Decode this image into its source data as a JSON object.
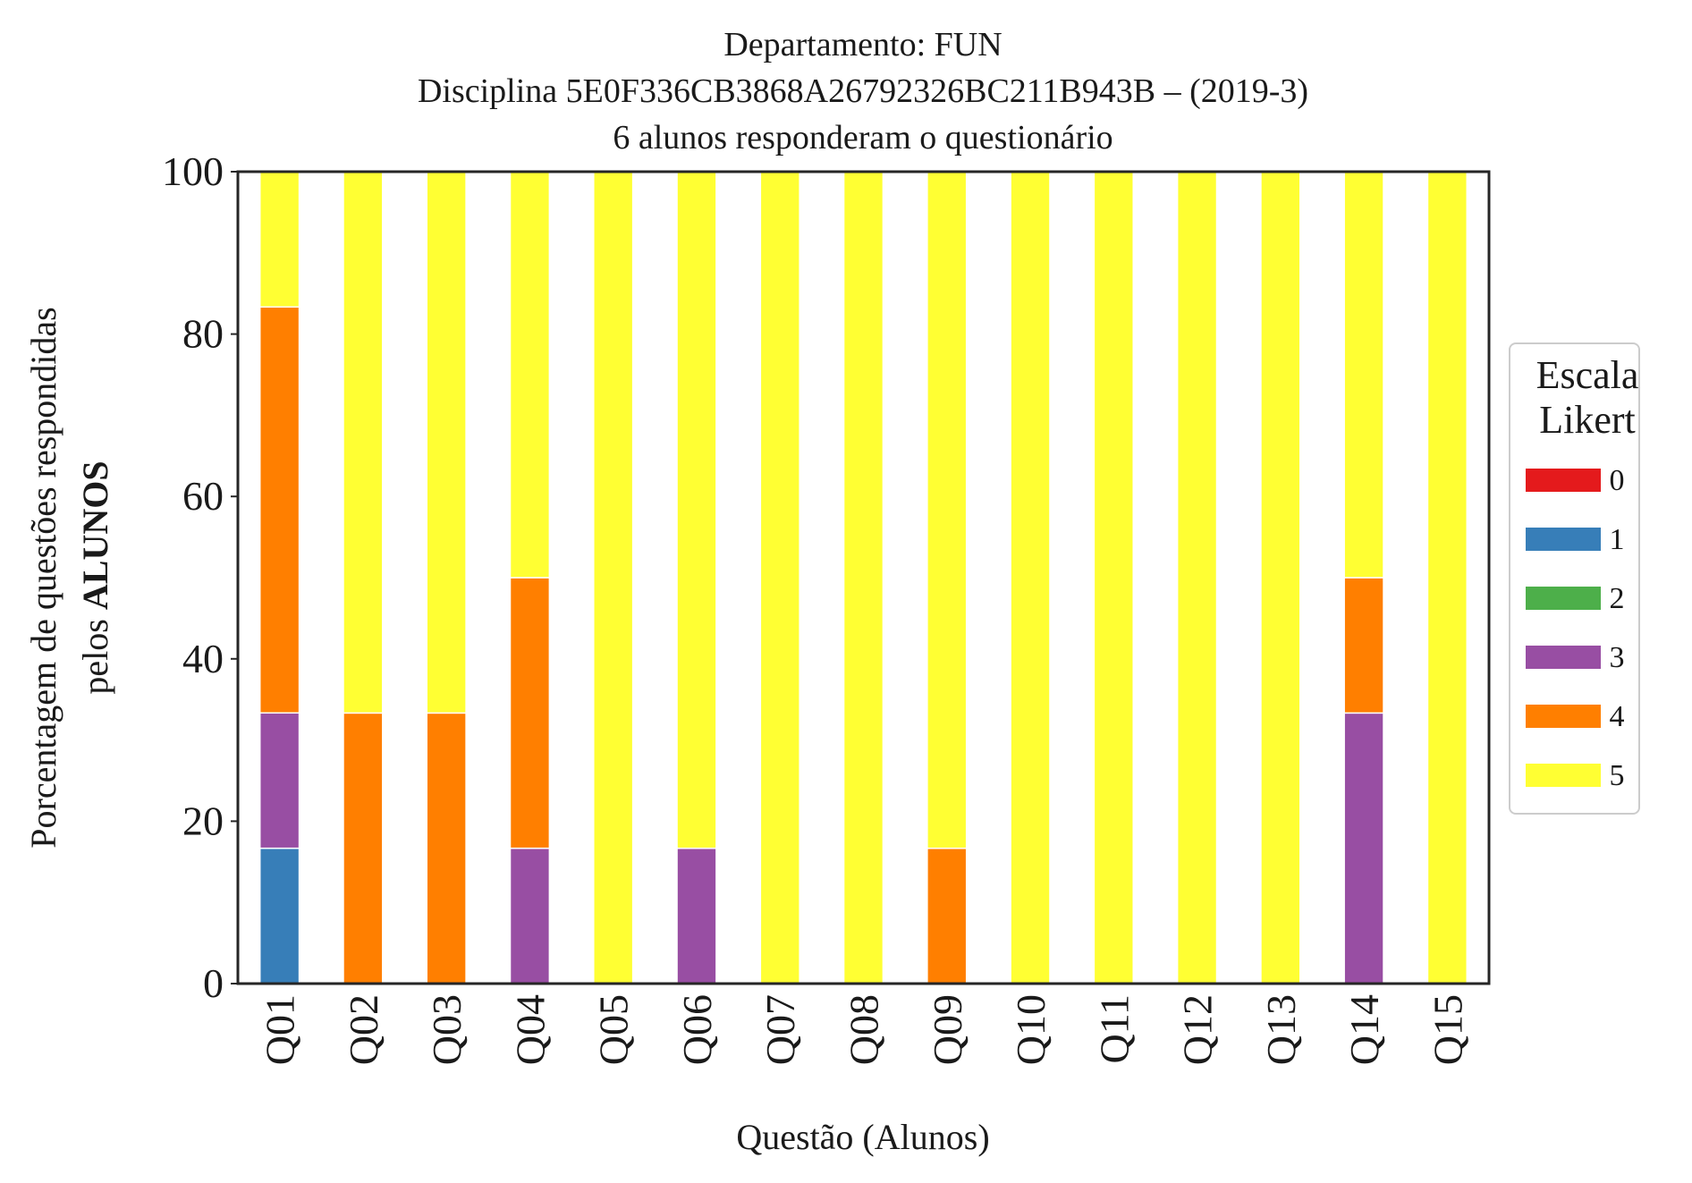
{
  "chart_data": {
    "type": "bar",
    "stacked": true,
    "title_lines": [
      "Departamento: FUN",
      "Disciplina 5E0F336CB3868A26792326BC211B943B – (2019-3)",
      "6 alunos responderam o questionário"
    ],
    "xlabel": "Questão (Alunos)",
    "ylabel_line1": "Porcentagem de questões respondidas",
    "ylabel_line2_prefix": "pelos ",
    "ylabel_line2_bold": "ALUNOS",
    "ylim": [
      0,
      100
    ],
    "yticks": [
      "0",
      "20",
      "40",
      "60",
      "80",
      "100"
    ],
    "categories": [
      "Q01",
      "Q02",
      "Q03",
      "Q04",
      "Q05",
      "Q06",
      "Q07",
      "Q08",
      "Q09",
      "Q10",
      "Q11",
      "Q12",
      "Q13",
      "Q14",
      "Q15"
    ],
    "legend": {
      "title_lines": [
        "Escala",
        "Likert"
      ],
      "placement": "right-center"
    },
    "series": [
      {
        "name": "0",
        "color": "#e41a1c",
        "values": [
          0,
          0,
          0,
          0,
          0,
          0,
          0,
          0,
          0,
          0,
          0,
          0,
          0,
          0,
          0
        ]
      },
      {
        "name": "1",
        "color": "#377eb8",
        "values": [
          16.67,
          0,
          0,
          0,
          0,
          0,
          0,
          0,
          0,
          0,
          0,
          0,
          0,
          0,
          0
        ]
      },
      {
        "name": "2",
        "color": "#4daf4a",
        "values": [
          0,
          0,
          0,
          0,
          0,
          0,
          0,
          0,
          0,
          0,
          0,
          0,
          0,
          0,
          0
        ]
      },
      {
        "name": "3",
        "color": "#984ea3",
        "values": [
          16.67,
          0,
          0,
          16.67,
          0,
          16.67,
          0,
          0,
          0,
          0,
          0,
          0,
          0,
          33.33,
          0
        ]
      },
      {
        "name": "4",
        "color": "#ff7f00",
        "values": [
          50,
          33.33,
          33.33,
          33.33,
          0,
          0,
          0,
          0,
          16.67,
          0,
          0,
          0,
          0,
          16.67,
          0
        ]
      },
      {
        "name": "5",
        "color": "#ffff33",
        "values": [
          16.67,
          66.67,
          66.67,
          50,
          100,
          83.33,
          100,
          100,
          83.33,
          100,
          100,
          100,
          100,
          50,
          100
        ]
      }
    ],
    "grid": false
  }
}
